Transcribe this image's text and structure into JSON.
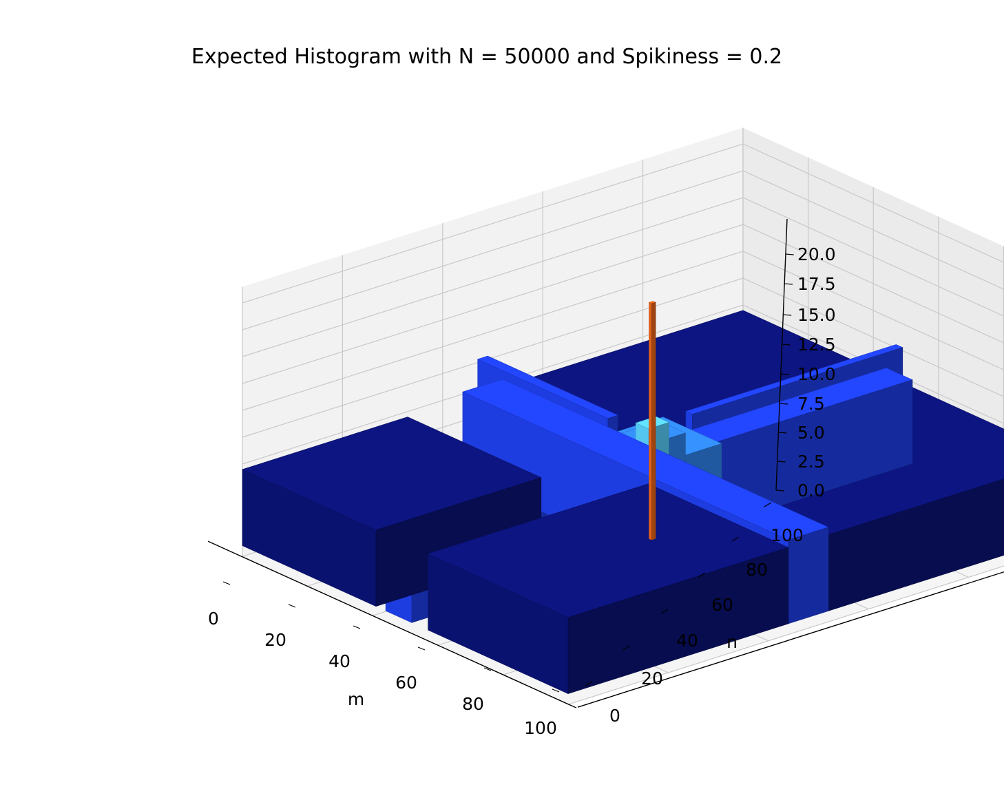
{
  "chart_data": {
    "type": "bar3d",
    "title": "Expected Histogram with N = 50000 and Spikiness = 0.2",
    "xlabel": "m",
    "ylabel": "n",
    "zlabel": "",
    "xlim": [
      0,
      100
    ],
    "ylim": [
      0,
      100
    ],
    "zlim": [
      0,
      21.5
    ],
    "x_ticks": [
      "0",
      "20",
      "40",
      "60",
      "80",
      "100"
    ],
    "y_ticks": [
      "0",
      "20",
      "40",
      "60",
      "80",
      "100"
    ],
    "z_ticks": [
      "0.0",
      "2.5",
      "5.0",
      "7.5",
      "10.0",
      "12.5",
      "15.0",
      "17.5",
      "20.0"
    ],
    "grid": true,
    "colors": {
      "base": "#0a1270",
      "ridge": "#1e3de0",
      "mid": "#2f7fe6",
      "peak": "#55c6f0",
      "spike": "#e0611a",
      "pane_left": "#f2f2f2",
      "pane_back": "#ebebeb",
      "grid": "#c8c8c8"
    },
    "blocks": [
      {
        "name": "base-front-left",
        "x": [
          0,
          41
        ],
        "y": [
          0,
          33
        ],
        "z": 4.5
      },
      {
        "name": "base-front-right",
        "x": [
          57,
          100
        ],
        "y": [
          0,
          44
        ],
        "z": 4.5
      },
      {
        "name": "base-back-left",
        "x": [
          0,
          47
        ],
        "y": [
          55,
          100
        ],
        "z": 4.5
      },
      {
        "name": "base-back-right",
        "x": [
          52,
          100
        ],
        "y": [
          52,
          100
        ],
        "z": 4.5
      },
      {
        "name": "ridge-m-axis",
        "x": [
          44,
          52
        ],
        "y": [
          0,
          100
        ],
        "z": 5.2
      },
      {
        "name": "ridge-n-axis",
        "x": [
          0,
          100
        ],
        "y": [
          44,
          52
        ],
        "z": 5.2
      },
      {
        "name": "ridge-wall-back",
        "x": [
          47,
          49
        ],
        "y": [
          58,
          100
        ],
        "z": 7.8
      },
      {
        "name": "ridge-wall-left",
        "x": [
          0,
          40
        ],
        "y": [
          47,
          49
        ],
        "z": 7.8
      },
      {
        "name": "center-plate",
        "x": [
          40,
          58
        ],
        "y": [
          42,
          58
        ],
        "z": 6.3
      },
      {
        "name": "center-mid",
        "x": [
          45,
          53
        ],
        "y": [
          46,
          54
        ],
        "z": 7.2
      },
      {
        "name": "center-peak",
        "x": [
          47,
          51
        ],
        "y": [
          48,
          52
        ],
        "z": 8.2
      }
    ],
    "spike": {
      "x": 49,
      "y": 50,
      "z": 19.4
    }
  }
}
